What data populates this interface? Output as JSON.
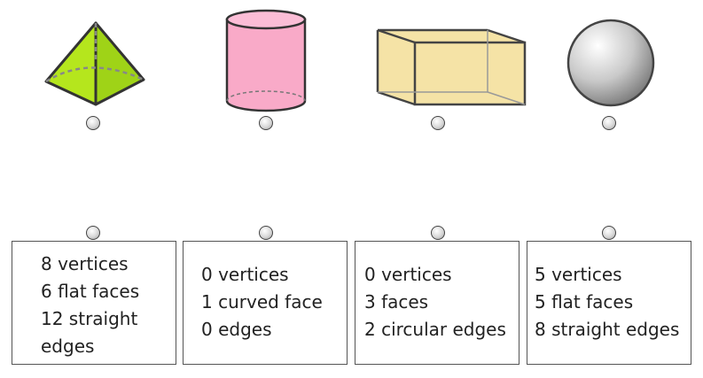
{
  "shapes": [
    {
      "name": "pyramid",
      "icon": "square-pyramid-icon",
      "color": "#b5e61d"
    },
    {
      "name": "cylinder",
      "icon": "cylinder-icon",
      "color": "#f9aac8"
    },
    {
      "name": "cuboid",
      "icon": "cuboid-icon",
      "color": "#f5e3a6"
    },
    {
      "name": "sphere",
      "icon": "sphere-icon",
      "color": "#d9d9d9"
    }
  ],
  "cards": [
    {
      "lines": [
        "8 vertices",
        "6 flat faces",
        "12 straight",
        "edges"
      ]
    },
    {
      "lines": [
        "0 vertices",
        "1 curved face",
        "0 edges"
      ]
    },
    {
      "lines": [
        "0 vertices",
        "3 faces",
        "2 circular edges"
      ]
    },
    {
      "lines": [
        "5 vertices",
        "5 flat faces",
        "8 straight edges"
      ]
    }
  ]
}
